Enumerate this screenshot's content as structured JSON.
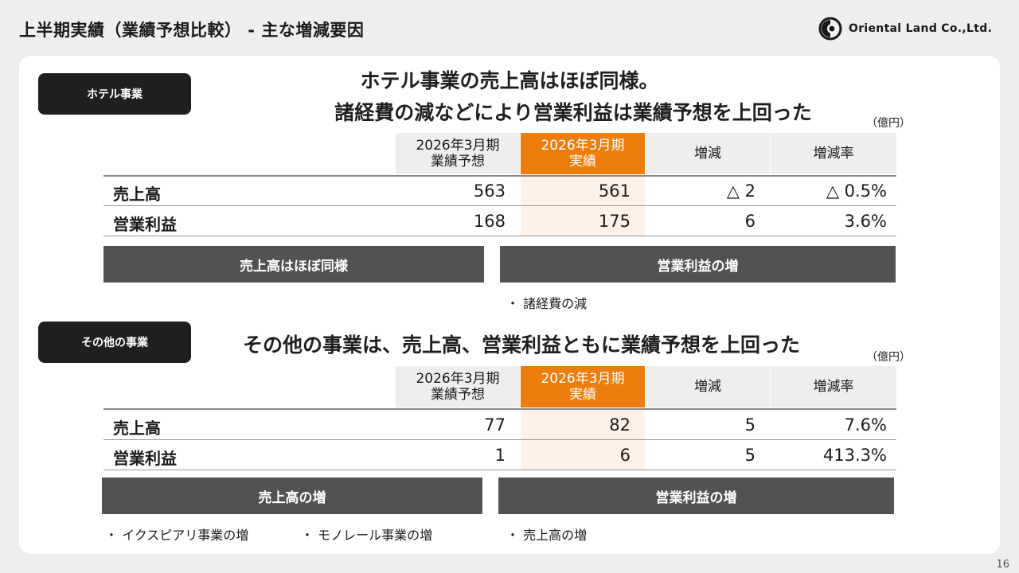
{
  "page": {
    "title": "上半期実績（業績予想比較） - 主な増減要因",
    "logo_text": "Oriental Land Co.,Ltd.",
    "page_number": "16"
  },
  "hotel": {
    "tag": "ホテル事業",
    "headline_1": "ホテル事業の売上高はほぼ同様。",
    "headline_2": "諸経費の減などにより営業利益は業績予想を上回った",
    "unit": "（億円）",
    "headers": {
      "forecast_1": "2026年3月期",
      "forecast_2": "業績予想",
      "actual_1": "2026年3月期",
      "actual_2": "実績",
      "change": "増減",
      "rate": "増減率"
    },
    "rows": [
      {
        "label": "売上高",
        "forecast": "563",
        "actual": "561",
        "change": "△ 2",
        "rate": "△ 0.5%"
      },
      {
        "label": "営業利益",
        "forecast": "168",
        "actual": "175",
        "change": "6",
        "rate": "3.6%"
      }
    ],
    "factor_left": "売上高はほぼ同様",
    "factor_right": "営業利益の増",
    "bullets_right": [
      "・ 諸経費の減"
    ]
  },
  "other": {
    "tag": "その他の事業",
    "headline": "その他の事業は、売上高、営業利益ともに業績予想を上回った",
    "unit": "（億円）",
    "headers": {
      "forecast_1": "2026年3月期",
      "forecast_2": "業績予想",
      "actual_1": "2026年3月期",
      "actual_2": "実績",
      "change": "増減",
      "rate": "増減率"
    },
    "rows": [
      {
        "label": "売上高",
        "forecast": "77",
        "actual": "82",
        "change": "5",
        "rate": "7.6%"
      },
      {
        "label": "営業利益",
        "forecast": "1",
        "actual": "6",
        "change": "5",
        "rate": "413.3%"
      }
    ],
    "factor_left": "売上高の増",
    "factor_right": "営業利益の増",
    "bullets_left": [
      "・ イクスピアリ事業の増",
      "・ モノレール事業の増"
    ],
    "bullets_right": [
      "・ 売上高の増"
    ]
  },
  "colors": {
    "accent_orange": "#ed7d0c",
    "actual_column_tint": "#fdf0e6",
    "factor_bar": "#505254",
    "tag_pill": "#1f1f1f"
  }
}
